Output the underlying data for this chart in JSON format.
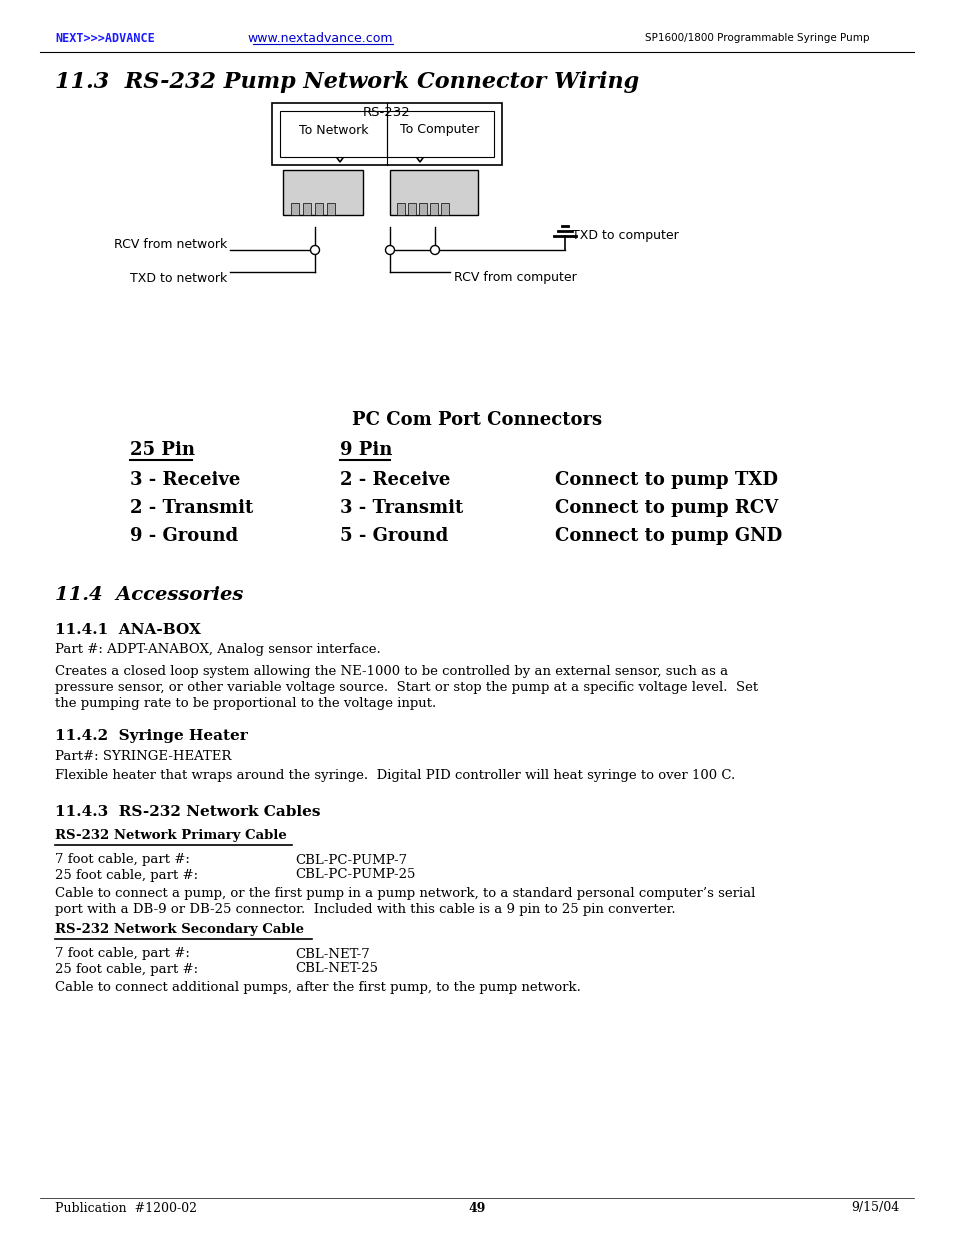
{
  "page_bg": "#ffffff",
  "header_logo": "NEXT>>>ADVANCE",
  "header_url": "www.nextadvance.com",
  "header_right": "SP1600/1800 Programmable Syringe Pump",
  "section_title": "11.3  RS-232 Pump Network Connector Wiring",
  "diagram_label_top": "RS-232",
  "diagram_col1": "To Network",
  "diagram_col2": "To Computer",
  "label_rcv_network": "RCV from network",
  "label_txd_network": "TXD to network",
  "label_txd_computer": "TXD to computer",
  "label_rcv_computer": "RCV from computer",
  "pc_com_title": "PC Com Port Connectors",
  "col_25pin": "25 Pin",
  "col_9pin": "9 Pin",
  "row1_25": "3 - Receive",
  "row1_9": "2 - Receive",
  "row1_connect": "Connect to pump TXD",
  "row2_25": "2 - Transmit",
  "row2_9": "3 - Transmit",
  "row2_connect": "Connect to pump RCV",
  "row3_25": "9 - Ground",
  "row3_9": "5 - Ground",
  "row3_connect": "Connect to pump GND",
  "section2_title": "11.4  Accessories",
  "sub1_title": "11.4.1  ANA-BOX",
  "sub1_part": "Part #: ADPT-ANABOX, Analog sensor interface.",
  "sub1_body1": "Creates a closed loop system allowing the NE-1000 to be controlled by an external sensor, such as a",
  "sub1_body2": "pressure sensor, or other variable voltage source.  Start or stop the pump at a specific voltage level.  Set",
  "sub1_body3": "the pumping rate to be proportional to the voltage input.",
  "sub2_title": "11.4.2  Syringe Heater",
  "sub2_part": "Part#: SYRINGE-HEATER",
  "sub2_body": "Flexible heater that wraps around the syringe.  Digital PID controller will heat syringe to over 100 C.",
  "sub3_title": "11.4.3  RS-232 Network Cables",
  "sub3_cable1_title": "RS-232 Network Primary Cable",
  "sub3_cable1_row1_label": "7 foot cable, part #:",
  "sub3_cable1_row1_val": "CBL-PC-PUMP-7",
  "sub3_cable1_row2_label": "25 foot cable, part #:",
  "sub3_cable1_row2_val": "CBL-PC-PUMP-25",
  "sub3_cable1_body1": "Cable to connect a pump, or the first pump in a pump network, to a standard personal computer’s serial",
  "sub3_cable1_body2": "port with a DB-9 or DB-25 connector.  Included with this cable is a 9 pin to 25 pin converter.",
  "sub3_cable2_title": "RS-232 Network Secondary Cable",
  "sub3_cable2_row1_label": "7 foot cable, part #:",
  "sub3_cable2_row1_val": "CBL-NET-7",
  "sub3_cable2_row2_label": "25 foot cable, part #:",
  "sub3_cable2_row2_val": "CBL-NET-25",
  "sub3_cable2_body": "Cable to connect additional pumps, after the first pump, to the pump network.",
  "footer_left": "Publication  #1200-02",
  "footer_center": "49",
  "footer_right": "9/15/04"
}
